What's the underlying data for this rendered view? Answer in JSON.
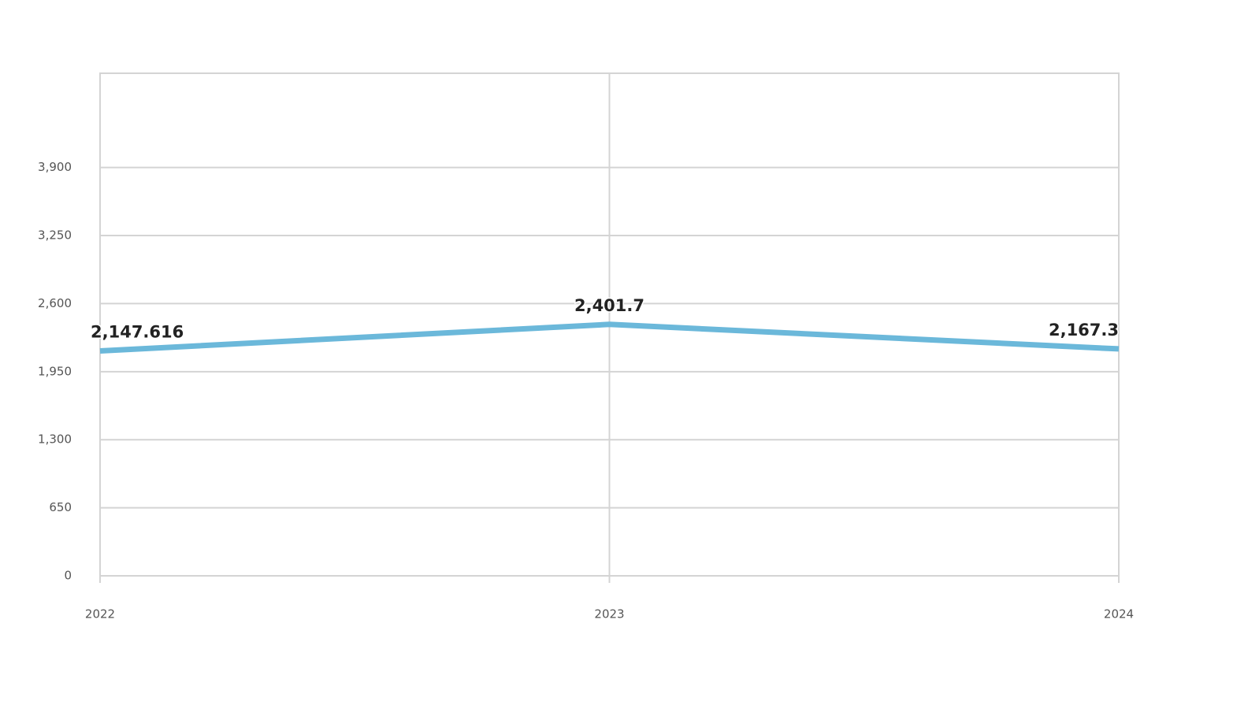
{
  "chart_data": {
    "type": "line",
    "categories": [
      "2022",
      "2023",
      "2024"
    ],
    "series": [
      {
        "color": "#6bb8da",
        "values": [
          2147.616,
          2401.7,
          2167.3
        ],
        "value_labels": [
          "2,147.616",
          "2,401.7",
          "2,167.3"
        ]
      }
    ],
    "ylim": [
      0,
      4800
    ],
    "yticks": [
      0,
      650,
      {
        "value": 1300,
        "label": "1,300"
      },
      {
        "value": 1950,
        "label": "1,950"
      },
      {
        "value": 2600,
        "label": "2,600"
      },
      {
        "value": 3250,
        "label": "3,250"
      },
      {
        "value": 3900,
        "label": "3,900"
      }
    ],
    "grid": true
  }
}
